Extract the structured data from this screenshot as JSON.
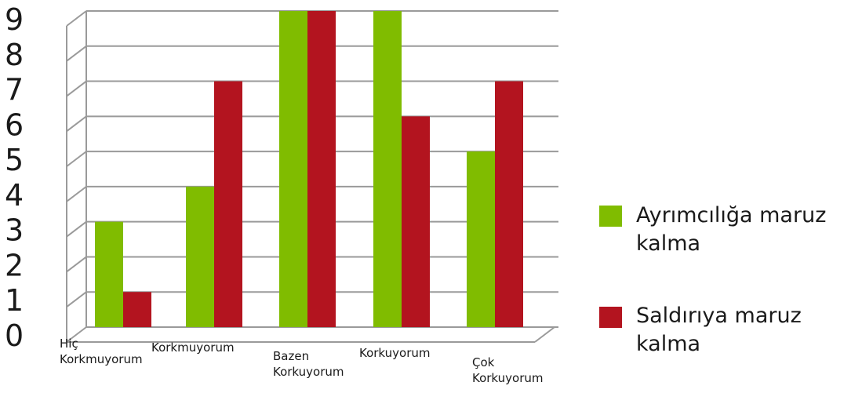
{
  "chart_data": {
    "type": "bar",
    "title": "",
    "xlabel": "",
    "ylabel": "",
    "ylim": [
      0,
      9
    ],
    "yticks": [
      0,
      1,
      2,
      3,
      4,
      5,
      6,
      7,
      8,
      9
    ],
    "grid": true,
    "legend_position": "right",
    "categories": [
      [
        "Hiç",
        "Korkmuyorum"
      ],
      [
        "Korkmuyorum"
      ],
      [
        "Bazen",
        "Korkuyorum"
      ],
      [
        "Korkuyorum"
      ],
      [
        "Çok",
        "Korkuyorum"
      ]
    ],
    "series": [
      {
        "name": [
          "Ayrımcılığa maruz",
          "kalma"
        ],
        "color": "#80bc00",
        "values": [
          3,
          4,
          9,
          9,
          5
        ]
      },
      {
        "name": [
          "Saldırıya maruz",
          "kalma"
        ],
        "color": "#b3141f",
        "values": [
          1,
          7,
          9,
          6,
          7
        ]
      }
    ]
  }
}
